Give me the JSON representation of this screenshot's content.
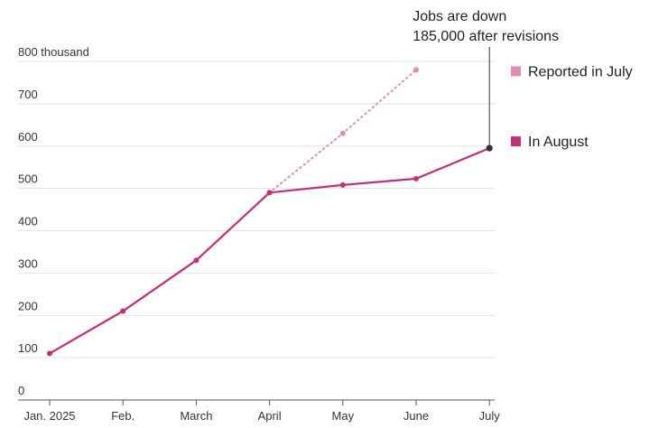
{
  "chart_data": {
    "type": "line",
    "y_unit_label": "800 thousand",
    "ylim": [
      0,
      800
    ],
    "yticks": [
      0,
      100,
      200,
      300,
      400,
      500,
      600,
      700,
      800
    ],
    "ytick_labels": [
      "0",
      "100",
      "200",
      "300",
      "400",
      "500",
      "600",
      "700",
      "800 thousand"
    ],
    "categories": [
      "Jan. 2025",
      "Feb.",
      "March",
      "April",
      "May",
      "June",
      "July"
    ],
    "grid": true,
    "legend_placement": "right",
    "series": [
      {
        "name": "Reported in July",
        "color": "#e08db3",
        "style": "dotted",
        "values": [
          110,
          210,
          330,
          490,
          630,
          780,
          null
        ]
      },
      {
        "name": "In August",
        "color": "#c2307a",
        "style": "solid",
        "values": [
          110,
          210,
          330,
          490,
          508,
          523,
          595
        ]
      }
    ],
    "annotation": {
      "lines": [
        "Jobs are down",
        "185,000 after revisions"
      ],
      "category": "July",
      "value": 595,
      "marker_color": "#333333"
    }
  }
}
